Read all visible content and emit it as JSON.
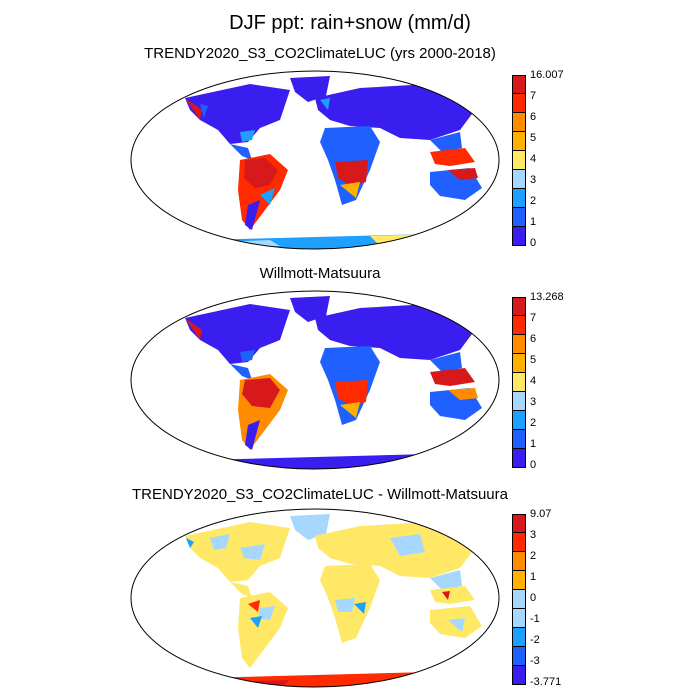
{
  "title": "DJF ppt: rain+snow (mm/d)",
  "panels": [
    {
      "title": "TRENDY2020_S3_CO2ClimateLUC (yrs 2000-2018)",
      "colorbar": {
        "labels": [
          "16.007",
          "7",
          "6",
          "5",
          "4",
          "3",
          "2",
          "1",
          "0"
        ],
        "colors": [
          "#d7191c",
          "#ff2a00",
          "#ff8c00",
          "#ffb000",
          "#ffe866",
          "#a6d8ff",
          "#1ea0ff",
          "#2060ff",
          "#3a1ef0"
        ]
      }
    },
    {
      "title": "Willmott-Matsuura",
      "colorbar": {
        "labels": [
          "13.268",
          "7",
          "6",
          "5",
          "4",
          "3",
          "2",
          "1",
          "0"
        ],
        "colors": [
          "#d7191c",
          "#ff2a00",
          "#ff8c00",
          "#ffb000",
          "#ffe866",
          "#a6d8ff",
          "#1ea0ff",
          "#2060ff",
          "#3a1ef0"
        ]
      }
    },
    {
      "title": "TRENDY2020_S3_CO2ClimateLUC - Willmott-Matsuura",
      "colorbar": {
        "labels": [
          "9.07",
          "3",
          "2",
          "1",
          "0",
          "-1",
          "-2",
          "-3",
          "-3.771"
        ],
        "colors": [
          "#d7191c",
          "#ff2a00",
          "#ff8c00",
          "#ffb000",
          "#ffe866",
          "#a6d8ff",
          "#1ea0ff",
          "#2060ff",
          "#3a1ef0"
        ]
      }
    }
  ]
}
